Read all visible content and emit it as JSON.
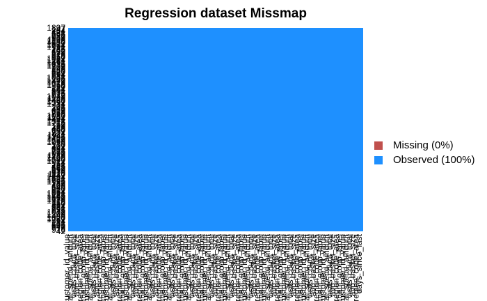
{
  "chart_data": {
    "type": "heatmap",
    "title": "Regression dataset Missmap",
    "xlabel": "",
    "ylabel": "",
    "row_labels_visible": [
      "1897",
      "42"
    ],
    "column_label_visible": "days_since_last",
    "legend": {
      "placement": "right",
      "items": [
        {
          "label": "Missing (0%)",
          "color": "#C0504D",
          "value": 0
        },
        {
          "label": "Observed (100%)",
          "color": "#1E90FF",
          "value": 100
        }
      ]
    },
    "missing_pct": 0,
    "observed_pct": 100,
    "colors": {
      "missing": "#C0504D",
      "observed": "#1E90FF"
    }
  }
}
